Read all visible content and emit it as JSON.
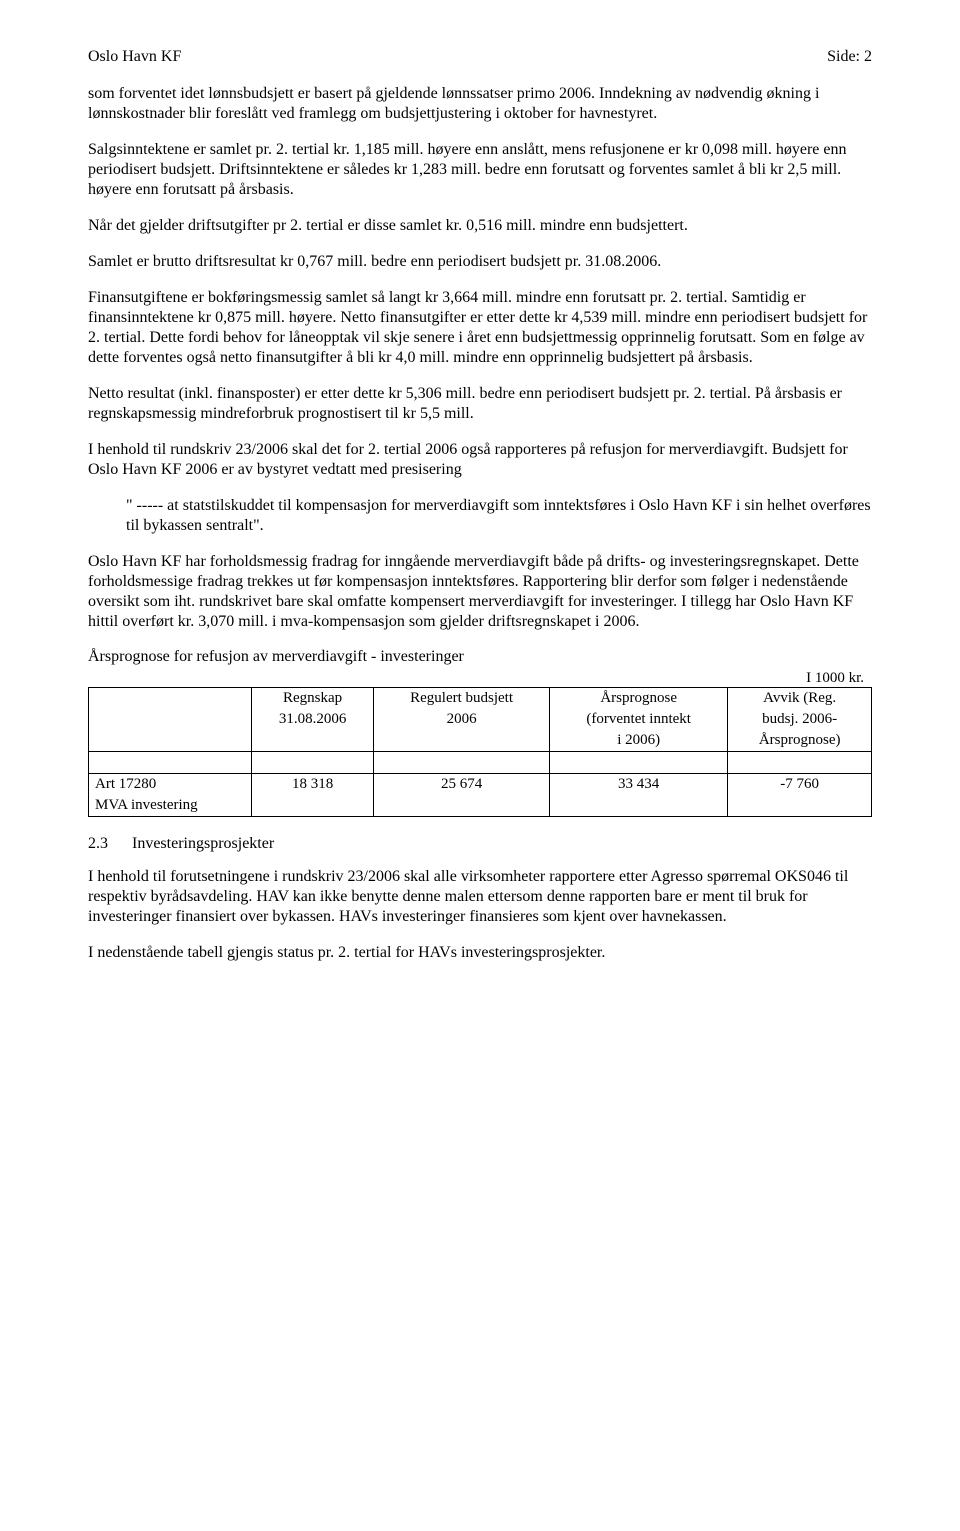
{
  "header": {
    "left": "Oslo Havn KF",
    "right": "Side:  2"
  },
  "paragraphs": {
    "p1": "som forventet idet lønnsbudsjett er basert på gjeldende lønnssatser primo 2006. Inndekning av nødvendig økning i lønnskostnader blir foreslått ved framlegg om budsjettjustering i oktober for havnestyret.",
    "p2": "Salgsinntektene er samlet pr. 2. tertial kr. 1,185 mill. høyere enn anslått, mens refusjonene er kr 0,098 mill. høyere enn periodisert budsjett. Driftsinntektene er således kr 1,283 mill. bedre enn forutsatt og forventes samlet å bli kr 2,5 mill. høyere enn forutsatt på årsbasis.",
    "p3": "Når det gjelder driftsutgifter pr 2. tertial er disse samlet kr. 0,516 mill. mindre enn budsjettert.",
    "p4": "Samlet er brutto driftsresultat kr 0,767 mill. bedre enn periodisert budsjett pr. 31.08.2006.",
    "p5": "Finansutgiftene er bokføringsmessig samlet så langt kr 3,664 mill. mindre enn forutsatt pr. 2. tertial. Samtidig er finansinntektene kr 0,875 mill. høyere. Netto finansutgifter er etter dette kr 4,539 mill. mindre enn periodisert budsjett for 2. tertial. Dette fordi behov for låneopptak vil skje senere i året enn budsjettmessig opprinnelig forutsatt. Som en følge av dette forventes også netto finansutgifter å bli kr 4,0 mill. mindre enn opprinnelig budsjettert på årsbasis.",
    "p6": "Netto resultat (inkl. finansposter) er etter dette kr 5,306 mill. bedre enn periodisert budsjett pr. 2. tertial. På årsbasis er regnskapsmessig mindreforbruk prognostisert til kr 5,5 mill.",
    "p7": "I henhold til rundskriv 23/2006 skal det for 2. tertial 2006 også rapporteres på refusjon for merverdiavgift. Budsjett for Oslo Havn KF 2006 er av bystyret vedtatt med presisering",
    "quote": "\" ----- at statstilskuddet til kompensasjon for merverdiavgift som inntektsføres i Oslo Havn KF i sin helhet overføres til bykassen sentralt\".",
    "p8": "Oslo Havn KF har forholdsmessig fradrag for inngående merverdiavgift både på drifts- og investeringsregnskapet. Dette forholdsmessige fradrag trekkes ut før kompensasjon inntektsføres. Rapportering blir derfor som følger i nedenstående oversikt som iht. rundskrivet bare skal omfatte kompensert merverdiavgift for investeringer. I tillegg har Oslo Havn KF hittil overført kr. 3,070 mill. i mva-kompensasjon som gjelder driftsregnskapet i 2006.",
    "p9": "I henhold til forutsetningene i rundskriv 23/2006 skal alle virksomheter rapportere etter Agresso spørremal OKS046 til respektiv byrådsavdeling. HAV kan ikke benytte denne malen ettersom denne rapporten bare er ment til bruk for investeringer finansiert over bykassen. HAVs investeringer finansieres som kjent over havnekassen.",
    "p10": "I nedenstående tabell gjengis status pr. 2. tertial for HAVs investeringsprosjekter."
  },
  "table": {
    "title": "Årsprognose for refusjon av merverdiavgift - investeringer",
    "unit": "I  1000 kr.",
    "head": {
      "c1_l1": "",
      "c2_l1": "Regnskap",
      "c2_l2": "31.08.2006",
      "c3_l1": "Regulert budsjett",
      "c3_l2": "2006",
      "c4_l1": "Årsprognose",
      "c4_l2": "(forventet inntekt",
      "c4_l3": "i 2006)",
      "c5_l1": "Avvik (Reg.",
      "c5_l2": "budsj. 2006-",
      "c5_l3": "Årsprognose)"
    },
    "row": {
      "label_l1": "Art 17280",
      "label_l2": "MVA investering",
      "c2": "18 318",
      "c3": "25 674",
      "c4": "33 434",
      "c5": "-7 760"
    }
  },
  "section": {
    "num": "2.3",
    "title": "Investeringsprosjekter"
  }
}
